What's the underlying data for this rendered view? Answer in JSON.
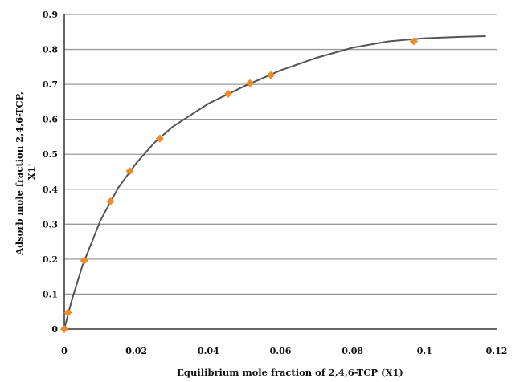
{
  "chart_data": {
    "type": "scatter",
    "xlabel": "Equilibrium mole fraction of 2,4,6-TCP (X1)",
    "ylabel_lines": [
      "Adsorb mole fraction 2,4,6-TCP,",
      "X1'"
    ],
    "xlim": [
      0,
      0.12
    ],
    "ylim": [
      0,
      0.9
    ],
    "x_ticks": [
      0,
      0.02,
      0.04,
      0.06,
      0.08,
      0.1,
      0.12
    ],
    "x_tick_labels": [
      "0",
      "0.02",
      "0.04",
      "0.06",
      "0.08",
      "0.1",
      "0.12"
    ],
    "y_ticks": [
      0,
      0.1,
      0.2,
      0.3,
      0.4,
      0.5,
      0.6,
      0.7,
      0.8,
      0.9
    ],
    "y_tick_labels": [
      "0",
      "0.1",
      "0.2",
      "0.3",
      "0.4",
      "0.5",
      "0.6",
      "0.7",
      "0.8",
      "0.9"
    ],
    "grid": "horizontal",
    "marker_color": "#f08a24",
    "line_color": "#555555",
    "points": [
      {
        "x": 0.0,
        "y": 0.0
      },
      {
        "x": 0.001,
        "y": 0.047
      },
      {
        "x": 0.0055,
        "y": 0.196
      },
      {
        "x": 0.0128,
        "y": 0.365
      },
      {
        "x": 0.0182,
        "y": 0.452
      },
      {
        "x": 0.0265,
        "y": 0.545
      },
      {
        "x": 0.0455,
        "y": 0.673
      },
      {
        "x": 0.0515,
        "y": 0.703
      },
      {
        "x": 0.0573,
        "y": 0.726
      },
      {
        "x": 0.097,
        "y": 0.823
      }
    ],
    "fit_curve": [
      {
        "x": 0.0,
        "y": 0.0
      },
      {
        "x": 0.002,
        "y": 0.08
      },
      {
        "x": 0.005,
        "y": 0.18
      },
      {
        "x": 0.01,
        "y": 0.31
      },
      {
        "x": 0.015,
        "y": 0.405
      },
      {
        "x": 0.02,
        "y": 0.475
      },
      {
        "x": 0.025,
        "y": 0.533
      },
      {
        "x": 0.03,
        "y": 0.578
      },
      {
        "x": 0.04,
        "y": 0.645
      },
      {
        "x": 0.05,
        "y": 0.695
      },
      {
        "x": 0.06,
        "y": 0.74
      },
      {
        "x": 0.07,
        "y": 0.776
      },
      {
        "x": 0.08,
        "y": 0.805
      },
      {
        "x": 0.09,
        "y": 0.823
      },
      {
        "x": 0.1,
        "y": 0.832
      },
      {
        "x": 0.11,
        "y": 0.836
      },
      {
        "x": 0.117,
        "y": 0.838
      }
    ]
  }
}
